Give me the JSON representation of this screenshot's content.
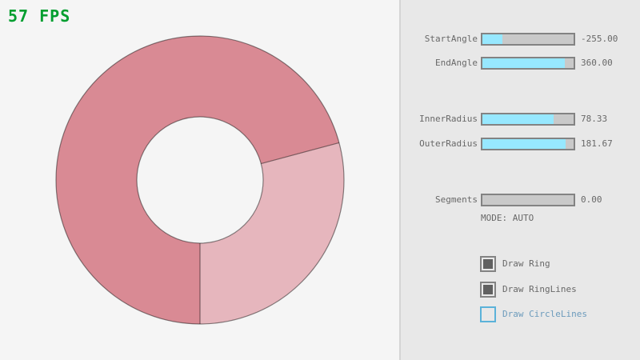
{
  "fps": {
    "label": "57 FPS",
    "color": "#009E2F"
  },
  "ring": {
    "start_angle": -255.0,
    "end_angle": 360.0,
    "inner_radius": 78.33,
    "outer_radius": 181.67,
    "segments": 0.0,
    "mode": "AUTO",
    "colors": {
      "single_pass": "#E6B6BD",
      "double_pass": "#D98A94",
      "outline": "rgba(0,0,0,0.45)"
    }
  },
  "panel": {
    "sliders": [
      {
        "label": "StartAngle",
        "value": "-255.00",
        "fill_pct": 21.7
      },
      {
        "label": "EndAngle",
        "value": "360.00",
        "fill_pct": 90.0
      },
      {
        "label": "InnerRadius",
        "value": "78.33",
        "fill_pct": 78.3
      },
      {
        "label": "OuterRadius",
        "value": "181.67",
        "fill_pct": 90.8
      },
      {
        "label": "Segments",
        "value": "0.00",
        "fill_pct": 0
      }
    ],
    "mode_label": "MODE: AUTO",
    "checkboxes": [
      {
        "label": "Draw Ring",
        "checked": true,
        "focused": false
      },
      {
        "label": "Draw RingLines",
        "checked": true,
        "focused": false
      },
      {
        "label": "Draw CircleLines",
        "checked": false,
        "focused": true
      }
    ],
    "colors": {
      "slider_fill": "#97E8FF",
      "slider_track": "#C9C9C9",
      "border": "#838383",
      "text": "#686868",
      "focused_border": "#5BB2D9",
      "focused_text": "#6C9BBC",
      "checked_fill": "#606060"
    }
  }
}
